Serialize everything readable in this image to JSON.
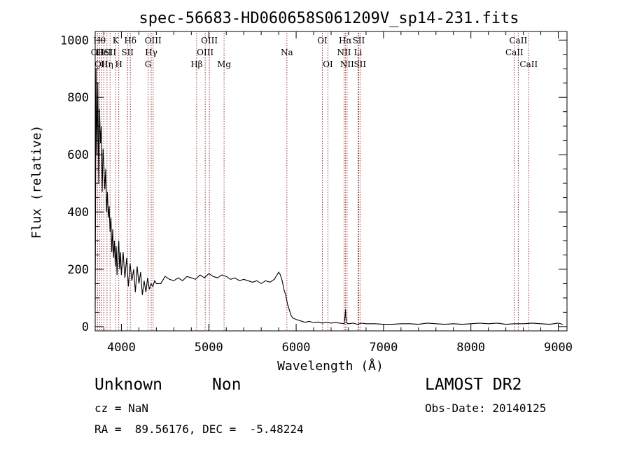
{
  "chart_data": {
    "type": "line",
    "title": "spec-56683-HD060658S061209V_sp14-231.fits",
    "xlabel": "Wavelength (Å)",
    "ylabel": "Flux (relative)",
    "xlim": [
      3700,
      9100
    ],
    "ylim": [
      -15,
      1030
    ],
    "xticks": [
      4000,
      5000,
      6000,
      7000,
      8000,
      9000
    ],
    "yticks": [
      0,
      200,
      400,
      600,
      800,
      1000
    ],
    "grid": false,
    "line_color": "#000000",
    "marker_color": "#8b1a1a",
    "x": [
      3700,
      3710,
      3720,
      3730,
      3740,
      3750,
      3760,
      3770,
      3780,
      3790,
      3800,
      3810,
      3820,
      3830,
      3840,
      3850,
      3860,
      3870,
      3880,
      3890,
      3900,
      3910,
      3920,
      3930,
      3940,
      3950,
      3960,
      3970,
      3980,
      3990,
      4000,
      4020,
      4040,
      4060,
      4080,
      4100,
      4120,
      4140,
      4160,
      4180,
      4200,
      4220,
      4240,
      4260,
      4280,
      4300,
      4320,
      4340,
      4360,
      4380,
      4400,
      4450,
      4500,
      4550,
      4600,
      4650,
      4700,
      4750,
      4800,
      4850,
      4900,
      4950,
      5000,
      5050,
      5100,
      5150,
      5200,
      5250,
      5300,
      5350,
      5400,
      5450,
      5500,
      5550,
      5600,
      5650,
      5700,
      5750,
      5800,
      5820,
      5840,
      5860,
      5880,
      5900,
      5920,
      5940,
      5960,
      6000,
      6050,
      6100,
      6150,
      6200,
      6250,
      6300,
      6350,
      6400,
      6450,
      6500,
      6550,
      6560,
      6565,
      6570,
      6580,
      6600,
      6650,
      6700,
      6750,
      6800,
      6900,
      7000,
      7100,
      7200,
      7300,
      7400,
      7500,
      7600,
      7700,
      7800,
      7900,
      8000,
      8100,
      8200,
      8300,
      8400,
      8500,
      8600,
      8700,
      8800,
      8900,
      9000,
      9050
    ],
    "y": [
      60,
      900,
      600,
      850,
      500,
      760,
      640,
      700,
      470,
      620,
      560,
      480,
      550,
      400,
      470,
      380,
      420,
      330,
      380,
      260,
      340,
      240,
      300,
      210,
      280,
      180,
      250,
      300,
      200,
      260,
      180,
      260,
      170,
      240,
      140,
      220,
      160,
      200,
      120,
      210,
      150,
      190,
      110,
      160,
      120,
      170,
      130,
      150,
      140,
      160,
      150,
      150,
      175,
      165,
      160,
      170,
      160,
      175,
      170,
      165,
      180,
      170,
      185,
      175,
      170,
      180,
      175,
      165,
      170,
      160,
      165,
      160,
      155,
      160,
      150,
      160,
      155,
      165,
      190,
      180,
      160,
      130,
      110,
      80,
      60,
      40,
      30,
      25,
      20,
      15,
      18,
      14,
      16,
      12,
      15,
      12,
      14,
      12,
      10,
      40,
      60,
      30,
      12,
      10,
      12,
      8,
      12,
      10,
      10,
      8,
      8,
      10,
      10,
      8,
      12,
      10,
      8,
      10,
      8,
      10,
      12,
      10,
      12,
      8,
      10,
      10,
      12,
      10,
      8,
      12,
      8
    ],
    "lines": [
      {
        "wl": 3727,
        "label": "OII",
        "row": 2
      },
      {
        "wl": 3750,
        "label": "Hθ",
        "row": 1
      },
      {
        "wl": 3770,
        "label": "OII",
        "row": 3
      },
      {
        "wl": 3798,
        "label": "HeI",
        "row": 2
      },
      {
        "wl": 3835,
        "label": "Hη",
        "row": 3
      },
      {
        "wl": 3870,
        "label": "SII",
        "row": 2
      },
      {
        "wl": 3934,
        "label": "K",
        "row": 1
      },
      {
        "wl": 3970,
        "label": "H",
        "row": 3
      },
      {
        "wl": 4070,
        "label": "SII",
        "row": 2
      },
      {
        "wl": 4102,
        "label": "Hδ",
        "row": 1
      },
      {
        "wl": 4305,
        "label": "G",
        "row": 3
      },
      {
        "wl": 4341,
        "label": "Hγ",
        "row": 2
      },
      {
        "wl": 4363,
        "label": "OIII",
        "row": 1
      },
      {
        "wl": 4861,
        "label": "Hβ",
        "row": 3
      },
      {
        "wl": 4959,
        "label": "OIII",
        "row": 2
      },
      {
        "wl": 5007,
        "label": "OIII",
        "row": 1
      },
      {
        "wl": 5175,
        "label": "Mg",
        "row": 3
      },
      {
        "wl": 5894,
        "label": "Na",
        "row": 2
      },
      {
        "wl": 6300,
        "label": "OI",
        "row": 1
      },
      {
        "wl": 6364,
        "label": "OI",
        "row": 3
      },
      {
        "wl": 6548,
        "label": "NII",
        "row": 2
      },
      {
        "wl": 6563,
        "label": "Hα",
        "row": 1
      },
      {
        "wl": 6583,
        "label": "NII",
        "row": 3
      },
      {
        "wl": 6708,
        "label": "Li",
        "row": 2
      },
      {
        "wl": 6716,
        "label": "SII",
        "row": 1
      },
      {
        "wl": 6731,
        "label": "SII",
        "row": 3
      },
      {
        "wl": 8498,
        "label": "CaII",
        "row": 2
      },
      {
        "wl": 8542,
        "label": "CaII",
        "row": 1
      },
      {
        "wl": 8662,
        "label": "CaII",
        "row": 3
      }
    ]
  },
  "info": {
    "class_label": "Unknown",
    "subclass_label": "Non",
    "cz_text": "cz = NaN",
    "radec_text": "RA =  89.56176, DEC =  -5.48224",
    "survey_label": "LAMOST DR2",
    "obs_date_text": "Obs-Date: 20140125"
  }
}
